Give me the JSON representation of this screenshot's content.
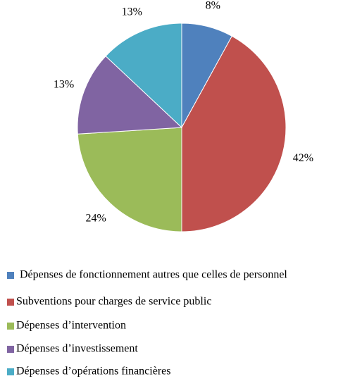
{
  "chart_data": {
    "type": "pie",
    "categories": [
      "Dépenses de fonctionnement autres que celles de personnel",
      "Subventions pour charges de service public",
      "Dépenses d’intervention",
      "Dépenses d’investissement",
      "Dépenses d’opérations financières"
    ],
    "values": [
      8,
      42,
      24,
      13,
      13
    ],
    "value_labels": [
      "8%",
      "42%",
      "24%",
      "13%",
      "13%"
    ],
    "colors": [
      "#4f81bd",
      "#c0504d",
      "#9bbb59",
      "#8064a2",
      "#4bacc6"
    ],
    "legend": "bottom"
  }
}
